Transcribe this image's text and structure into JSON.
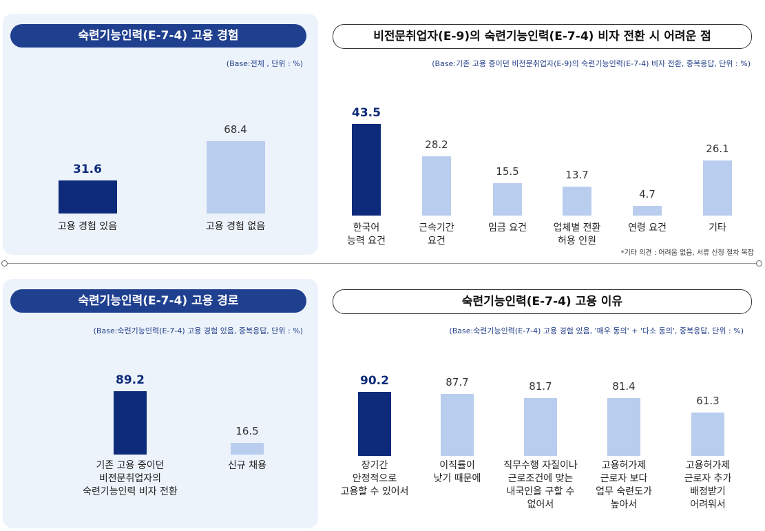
{
  "chart_data": [
    {
      "type": "bar",
      "title": "숙련기능인력(E-7-4) 고용 경험",
      "subtitle": "(Base:전체 , 단위 : %)",
      "categories": [
        "고용 경험 있음",
        "고용 경험 없음"
      ],
      "values": [
        31.6,
        68.4
      ],
      "colors": [
        "#0d2b7a",
        "#b9cdee"
      ]
    },
    {
      "type": "bar",
      "title": "비전문취업자(E-9)의 숙련기능인력(E-7-4) 비자 전환 시 어려운 점",
      "subtitle": "(Base:기존 고용 중이던 비전문취업자(E-9)의 숙련기능인력(E-7-4) 비자 전환, 중복응답, 단위 : %)",
      "categories": [
        "한국어\n능력 요건",
        "근속기간\n요건",
        "임금 요건",
        "업체별 전환\n허용 인원",
        "연령 요건",
        "기타"
      ],
      "values": [
        43.5,
        28.2,
        15.5,
        13.7,
        4.7,
        26.1
      ],
      "colors": [
        "#0d2b7a",
        "#b9cdee",
        "#b9cdee",
        "#b9cdee",
        "#b9cdee",
        "#b9cdee"
      ],
      "note": "*기타 의견 : 어려움 없음, 서류 신청 절차 복잡"
    },
    {
      "type": "bar",
      "title": "숙련기능인력(E-7-4) 고용 경로",
      "subtitle": "(Base:숙련기능인력(E-7-4) 고용 경험 있음, 중복응답, 단위 : %)",
      "categories": [
        "기존 고용 중이던\n비전문취업자의\n숙련기능인력 비자 전환",
        "신규 채용"
      ],
      "values": [
        89.2,
        16.5
      ],
      "colors": [
        "#0d2b7a",
        "#b9cdee"
      ]
    },
    {
      "type": "bar",
      "title": "숙련기능인력(E-7-4) 고용 이유",
      "subtitle": "(Base:숙련기능인력(E-7-4) 고용 경험 있음, '매우 동의' + '다소 동의', 중복응답, 단위 : %)",
      "categories": [
        "장기간\n안정적으로\n고용할 수 있어서",
        "이직률이\n낮기 때문에",
        "직무수행 자질이나\n근로조건에 맞는\n내국인을 구할 수\n없어서",
        "고용허가제\n근로자 보다\n업무 숙련도가\n높아서",
        "고용허가제\n근로자 추가\n배정받기\n어려워서"
      ],
      "values": [
        90.2,
        87.7,
        81.7,
        81.4,
        61.3
      ],
      "colors": [
        "#0d2b7a",
        "#b9cdee",
        "#b9cdee",
        "#b9cdee",
        "#b9cdee"
      ]
    }
  ]
}
